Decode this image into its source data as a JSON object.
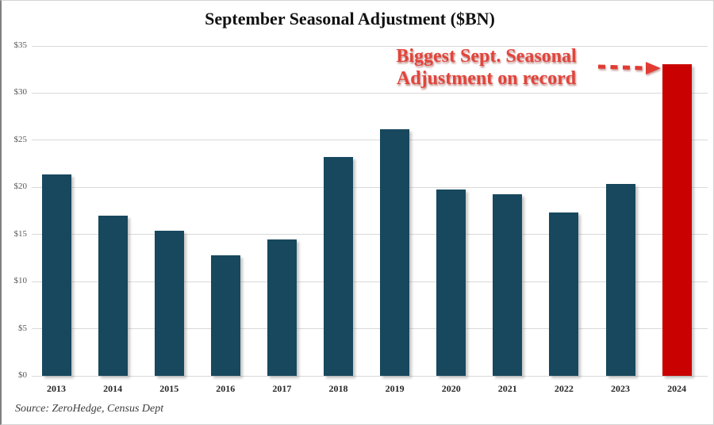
{
  "title": "September Seasonal Adjustment ($BN)",
  "source": "Source: ZeroHedge, Census Dept",
  "annotation": {
    "line1": "Biggest Sept. Seasonal",
    "line2": "Adjustment on record"
  },
  "colors": {
    "bar": "#17485E",
    "highlight_bar": "#C90101",
    "annotation_text": "#E2443B",
    "arrow": "#E23B33",
    "gridline": "#D9D9D9",
    "y_label": "#595959",
    "x_label": "#262626"
  },
  "chart_data": {
    "type": "bar",
    "title": "September Seasonal Adjustment ($BN)",
    "categories": [
      "2013",
      "2014",
      "2015",
      "2016",
      "2017",
      "2018",
      "2019",
      "2020",
      "2021",
      "2022",
      "2023",
      "2024"
    ],
    "values": [
      21.4,
      17.0,
      15.4,
      12.8,
      14.5,
      23.2,
      26.2,
      19.8,
      19.3,
      17.3,
      20.4,
      33.1
    ],
    "highlight_index": 11,
    "highlight_label": "2024",
    "xlabel": "",
    "ylabel": "",
    "ylim": [
      0,
      35
    ],
    "ytick_step": 5,
    "ytick_labels": [
      "$0",
      "$5",
      "$10",
      "$15",
      "$20",
      "$25",
      "$30",
      "$35"
    ],
    "grid": true,
    "legend": false,
    "annotation": "Biggest Sept. Seasonal Adjustment on record"
  }
}
